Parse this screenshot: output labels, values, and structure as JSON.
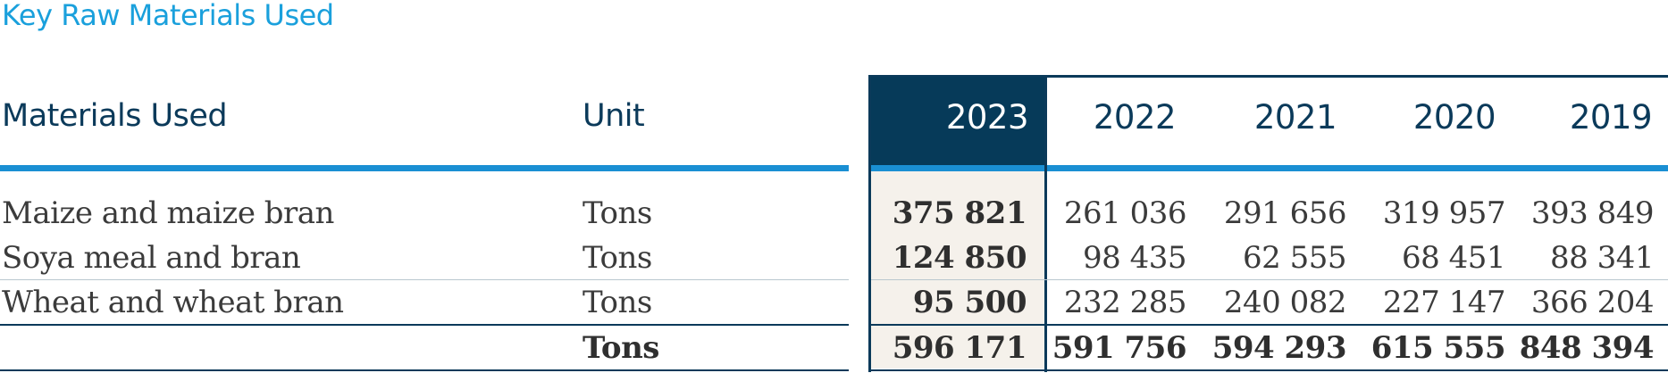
{
  "title": "Key Raw Materials Used",
  "headers": {
    "material": "Materials Used",
    "unit": "Unit",
    "years": [
      "2023",
      "2022",
      "2021",
      "2020",
      "2019"
    ]
  },
  "rows": [
    {
      "material": "Maize and maize bran",
      "unit": "Tons",
      "values": [
        "375 821",
        "261 036",
        "291 656",
        "319 957",
        "393 849"
      ]
    },
    {
      "material": "Soya meal and bran",
      "unit": "Tons",
      "values": [
        "124 850",
        "98 435",
        "62 555",
        "68 451",
        "88 341"
      ]
    },
    {
      "material": "Wheat and wheat bran",
      "unit": "Tons",
      "values": [
        "95 500",
        "232 285",
        "240 082",
        "227 147",
        "366 204"
      ]
    }
  ],
  "total": {
    "material": "",
    "unit": "Tons",
    "values": [
      "596 171",
      "591 756",
      "594 293",
      "615 555",
      "848 394"
    ]
  },
  "colors": {
    "title": "#1aa0dc",
    "header_text": "#0b3a5a",
    "highlight_year_bg": "#063a59",
    "rule_blue": "#1a8fd3",
    "highlight_column_bg": "#f5f1eb"
  }
}
